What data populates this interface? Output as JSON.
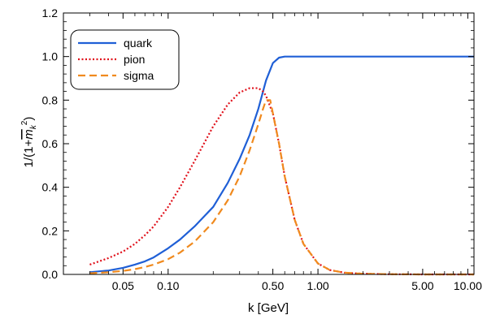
{
  "chart_data": {
    "type": "line",
    "xscale": "log",
    "xlim": [
      0.02,
      11
    ],
    "ylim": [
      0,
      1.2
    ],
    "xlabel": "k  [GeV]",
    "ylabel_parts": {
      "prefix": "1/(1+",
      "mbar": "m",
      "sub": "k",
      "sup": "2",
      "suffix": ")"
    },
    "xticks": [
      {
        "value": 0.05,
        "label": "0.05"
      },
      {
        "value": 0.1,
        "label": "0.10"
      },
      {
        "value": 0.5,
        "label": "0.50"
      },
      {
        "value": 1.0,
        "label": "1.00"
      },
      {
        "value": 5.0,
        "label": "5.00"
      },
      {
        "value": 10.0,
        "label": "10.00"
      }
    ],
    "xminor": [
      0.02,
      0.03,
      0.04,
      0.06,
      0.07,
      0.08,
      0.09,
      0.2,
      0.3,
      0.4,
      0.6,
      0.7,
      0.8,
      0.9,
      2,
      3,
      4,
      6,
      7,
      8,
      9
    ],
    "yticks": [
      {
        "value": 0.0,
        "label": "0.0"
      },
      {
        "value": 0.2,
        "label": "0.2"
      },
      {
        "value": 0.4,
        "label": "0.4"
      },
      {
        "value": 0.6,
        "label": "0.6"
      },
      {
        "value": 0.8,
        "label": "0.8"
      },
      {
        "value": 1.0,
        "label": "1.0"
      },
      {
        "value": 1.2,
        "label": "1.2"
      }
    ],
    "yminor_step": 0.04,
    "legend_position": "top-left",
    "series": [
      {
        "name": "quark",
        "color": "#1f5fd6",
        "dash": "solid",
        "x": [
          0.03,
          0.04,
          0.05,
          0.06,
          0.07,
          0.08,
          0.1,
          0.12,
          0.15,
          0.2,
          0.25,
          0.3,
          0.35,
          0.4,
          0.45,
          0.5,
          0.55,
          0.6,
          0.7,
          1.0,
          2.0,
          5.0,
          10.0,
          11.0
        ],
        "y": [
          0.01,
          0.018,
          0.03,
          0.045,
          0.06,
          0.078,
          0.12,
          0.16,
          0.22,
          0.31,
          0.42,
          0.53,
          0.64,
          0.76,
          0.89,
          0.97,
          0.995,
          1.0,
          1.0,
          1.0,
          1.0,
          1.0,
          1.0,
          1.0
        ]
      },
      {
        "name": "pion",
        "color": "#e0101a",
        "dash": "dotted",
        "x": [
          0.03,
          0.04,
          0.05,
          0.06,
          0.07,
          0.08,
          0.1,
          0.12,
          0.15,
          0.2,
          0.25,
          0.3,
          0.35,
          0.4,
          0.43,
          0.45,
          0.48,
          0.5,
          0.55,
          0.6,
          0.7,
          0.8,
          1.0,
          1.2,
          1.5,
          2.0,
          3.0,
          5.0,
          10.0,
          11.0
        ],
        "y": [
          0.045,
          0.075,
          0.105,
          0.14,
          0.18,
          0.22,
          0.31,
          0.4,
          0.52,
          0.68,
          0.78,
          0.835,
          0.855,
          0.855,
          0.84,
          0.82,
          0.77,
          0.74,
          0.6,
          0.45,
          0.25,
          0.14,
          0.05,
          0.02,
          0.008,
          0.003,
          0.001,
          0.0,
          0.0,
          0.0
        ]
      },
      {
        "name": "sigma",
        "color": "#f08a1e",
        "dash": "dashed",
        "x": [
          0.03,
          0.04,
          0.05,
          0.06,
          0.07,
          0.08,
          0.1,
          0.12,
          0.15,
          0.2,
          0.25,
          0.3,
          0.35,
          0.4,
          0.43,
          0.45,
          0.48,
          0.5,
          0.55,
          0.6,
          0.7,
          0.8,
          1.0,
          1.2,
          1.5,
          2.0,
          3.0,
          5.0,
          10.0,
          11.0
        ],
        "y": [
          0.005,
          0.01,
          0.016,
          0.024,
          0.034,
          0.045,
          0.07,
          0.1,
          0.15,
          0.24,
          0.34,
          0.45,
          0.57,
          0.69,
          0.76,
          0.8,
          0.8,
          0.74,
          0.6,
          0.45,
          0.25,
          0.14,
          0.05,
          0.02,
          0.008,
          0.003,
          0.001,
          0.0,
          0.0,
          0.0
        ]
      }
    ]
  }
}
